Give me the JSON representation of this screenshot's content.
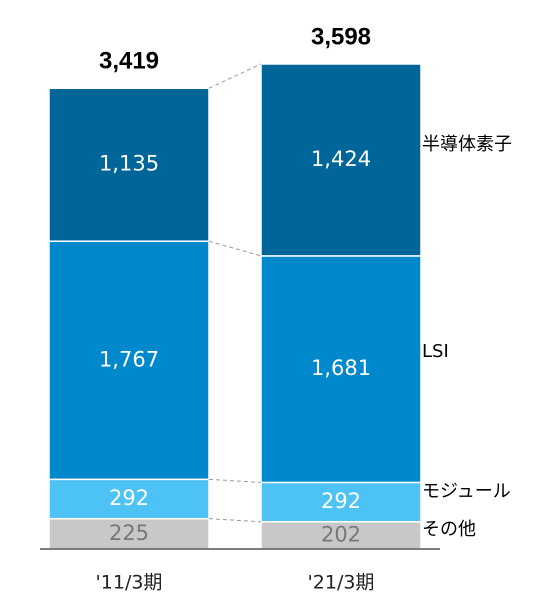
{
  "chart_data": {
    "type": "stacked_bar",
    "categories": [
      "'11/3期",
      "'21/3期"
    ],
    "series": [
      {
        "name": "その他",
        "color": "#c8c8c8",
        "label_color": "#777777",
        "values": [
          225,
          202
        ]
      },
      {
        "name": "モジュール",
        "color": "#4dc3f5",
        "label_color": "#ffffff",
        "values": [
          292,
          292
        ]
      },
      {
        "name": "LSI",
        "color": "#0088cc",
        "label_color": "#ffffff",
        "values": [
          1767,
          1681
        ],
        "value_labels": [
          "1,767",
          "1,681"
        ]
      },
      {
        "name": "半導体素子",
        "color": "#006699",
        "label_color": "#ffffff",
        "values": [
          1135,
          1424
        ],
        "value_labels": [
          "1,135",
          "1,424"
        ]
      }
    ],
    "totals": [
      3419,
      3598
    ],
    "total_labels": [
      "3,419",
      "3,598"
    ]
  }
}
